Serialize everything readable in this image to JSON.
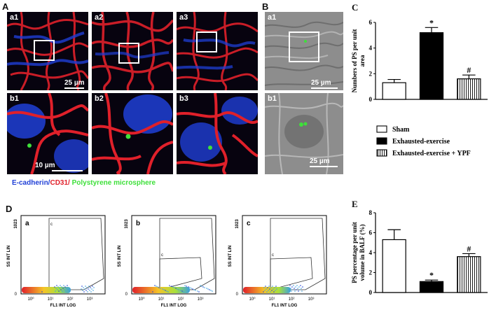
{
  "panels": {
    "A": {
      "letter": "A",
      "tiles_top": [
        {
          "label": "a1",
          "scale": "25 µm"
        },
        {
          "label": "a2",
          "scale": ""
        },
        {
          "label": "a3",
          "scale": ""
        }
      ],
      "tiles_bottom": [
        {
          "label": "b1",
          "scale": "10 µm"
        },
        {
          "label": "b2",
          "scale": ""
        },
        {
          "label": "b3",
          "scale": ""
        }
      ],
      "stain_legend": {
        "ecadherin": "E-cadherin/",
        "cd31": "CD31/",
        "microsphere": " Polystyrene microsphere"
      }
    },
    "B": {
      "letter": "B",
      "tiles": [
        {
          "label": "a1",
          "scale": "25 µm"
        },
        {
          "label": "b1",
          "scale": "25 µm"
        }
      ]
    },
    "D": {
      "letter": "D",
      "plots": [
        {
          "label": "a",
          "gate": "c"
        },
        {
          "label": "b",
          "gate": "c"
        },
        {
          "label": "c",
          "gate": "c"
        }
      ],
      "y_axis_label": "SS INT LIN",
      "x_axis_label": "FL1 INT LOG",
      "y_top_tick": "1023",
      "y_zero_tick": "0",
      "x_ticks": [
        "10⁰",
        "10¹",
        "10²",
        "10³"
      ]
    }
  },
  "colors": {
    "ecadherin": "#1f3fd6",
    "cd31": "#e0202a",
    "microsphere": "#3ee03a",
    "bar_sham": "#ffffff",
    "bar_exhausted": "#000000"
  },
  "chart_data": [
    {
      "panel": "C",
      "type": "bar",
      "categories": [
        "Sham",
        "Exhausted-exercise",
        "Exhausted-exercise + YPF"
      ],
      "values": [
        1.3,
        5.2,
        1.6
      ],
      "errors": [
        0.25,
        0.4,
        0.3
      ],
      "significance": [
        "",
        "*",
        "#"
      ],
      "fills": [
        "white",
        "black",
        "striped"
      ],
      "ylabel": "Numbers of PS per unit area",
      "ylim": [
        0,
        6
      ],
      "yticks": [
        0,
        2,
        4,
        6
      ],
      "legend": [
        "Sham",
        "Exhausted-exercise",
        "Exhausted-exercise + YPF"
      ],
      "legend_position": "below"
    },
    {
      "panel": "E",
      "type": "bar",
      "categories": [
        "Sham",
        "Exhausted-exercise",
        "Exhausted-exercise + YPF"
      ],
      "values": [
        5.3,
        1.1,
        3.6
      ],
      "errors": [
        1.0,
        0.15,
        0.3
      ],
      "significance": [
        "",
        "*",
        "#"
      ],
      "fills": [
        "white",
        "black",
        "striped"
      ],
      "ylabel": "PS percentage per unit volume in BALF (%)",
      "ylim": [
        0,
        8
      ],
      "yticks": [
        0,
        2,
        4,
        6,
        8
      ]
    }
  ]
}
